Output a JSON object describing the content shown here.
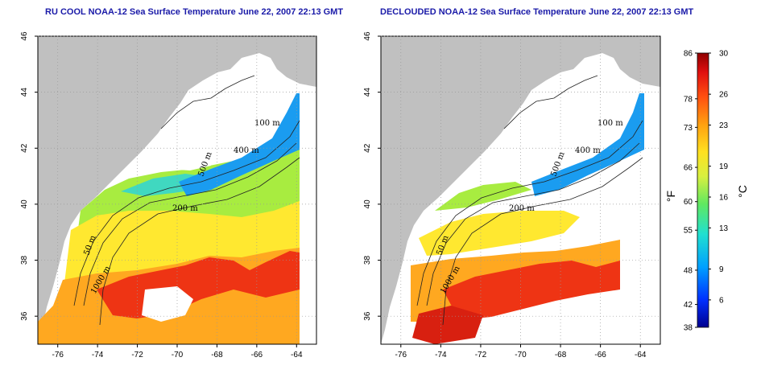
{
  "panels": [
    {
      "title": "RU COOL NOAA-12 Sea Surface Temperature June 22, 2007 22:13 GMT",
      "contour_labels": [
        "100 m",
        "400 m",
        "200 m",
        "50 m",
        "1000 m",
        "500 m"
      ]
    },
    {
      "title": "DECLOUDED NOAA-12 Sea Surface Temperature June 22, 2007 22:13 GMT",
      "contour_labels": [
        "100 m",
        "400 m",
        "200 m",
        "50 m",
        "1000 m",
        "500 m"
      ]
    }
  ],
  "axes": {
    "lon_ticks": [
      "-76",
      "-74",
      "-72",
      "-70",
      "-68",
      "-66",
      "-64"
    ],
    "lat_ticks": [
      "36",
      "38",
      "40",
      "42",
      "44",
      "46"
    ],
    "lon_range": [
      -77,
      -63
    ],
    "lat_range": [
      35,
      46
    ]
  },
  "colorbar": {
    "f_ticks": [
      "86",
      "78",
      "73",
      "66",
      "60",
      "55",
      "48",
      "42",
      "38"
    ],
    "c_ticks": [
      "30",
      "26",
      "23",
      "19",
      "16",
      "13",
      "9",
      "6"
    ],
    "f_unit": "°F",
    "c_unit": "°C",
    "colors": [
      "#00008f",
      "#0030ff",
      "#00a0ff",
      "#20e0d0",
      "#60e860",
      "#d8f040",
      "#ffe020",
      "#ffa010",
      "#ff5010",
      "#e01010",
      "#8f0000"
    ]
  },
  "colors": {
    "land": "#c0c0c0",
    "cloud": "#ffffff",
    "title": "#1a1aa8"
  }
}
